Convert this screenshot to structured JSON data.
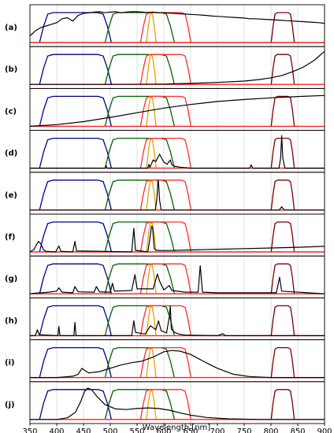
{
  "chart_data": {
    "type": "line",
    "xlabel": "Wavelength [nm]",
    "xlim": [
      350,
      900
    ],
    "xticks": [
      "350",
      "400",
      "450",
      "500",
      "550",
      "600",
      "650",
      "700",
      "750",
      "800",
      "850",
      "900"
    ],
    "grid": "vertical",
    "filters": [
      {
        "color": "#00008b",
        "band": [
          380,
          490
        ]
      },
      {
        "color": "#006400",
        "band": [
          502,
          608
        ]
      },
      {
        "color": "#e8a000",
        "band": [
          573,
          580
        ]
      },
      {
        "color": "#ff2a2a",
        "band": [
          565,
          642
        ]
      },
      {
        "color": "#7a0000",
        "band": [
          806,
          838
        ]
      }
    ],
    "panels": [
      {
        "label": "(a)",
        "spectrum_type": "solar_spectrum",
        "points": [
          [
            350,
            0.2
          ],
          [
            360,
            0.35
          ],
          [
            370,
            0.45
          ],
          [
            380,
            0.5
          ],
          [
            390,
            0.55
          ],
          [
            400,
            0.6
          ],
          [
            410,
            0.72
          ],
          [
            420,
            0.75
          ],
          [
            430,
            0.65
          ],
          [
            440,
            0.82
          ],
          [
            450,
            0.88
          ],
          [
            460,
            0.9
          ],
          [
            470,
            0.92
          ],
          [
            480,
            0.93
          ],
          [
            490,
            0.9
          ],
          [
            500,
            0.92
          ],
          [
            510,
            0.93
          ],
          [
            520,
            0.9
          ],
          [
            530,
            0.92
          ],
          [
            540,
            0.93
          ],
          [
            550,
            0.93
          ],
          [
            560,
            0.92
          ],
          [
            570,
            0.91
          ],
          [
            580,
            0.92
          ],
          [
            590,
            0.9
          ],
          [
            600,
            0.9
          ],
          [
            610,
            0.89
          ],
          [
            620,
            0.88
          ],
          [
            630,
            0.87
          ],
          [
            640,
            0.86
          ],
          [
            650,
            0.85
          ],
          [
            660,
            0.84
          ],
          [
            670,
            0.83
          ],
          [
            680,
            0.82
          ],
          [
            690,
            0.8
          ],
          [
            700,
            0.79
          ],
          [
            710,
            0.78
          ],
          [
            720,
            0.77
          ],
          [
            730,
            0.76
          ],
          [
            740,
            0.75
          ],
          [
            750,
            0.74
          ],
          [
            760,
            0.72
          ],
          [
            770,
            0.72
          ],
          [
            780,
            0.71
          ],
          [
            790,
            0.7
          ],
          [
            800,
            0.69
          ],
          [
            810,
            0.68
          ],
          [
            820,
            0.67
          ],
          [
            830,
            0.66
          ],
          [
            840,
            0.65
          ],
          [
            850,
            0.64
          ],
          [
            860,
            0.63
          ],
          [
            870,
            0.62
          ],
          [
            880,
            0.61
          ],
          [
            890,
            0.6
          ],
          [
            900,
            0.58
          ]
        ]
      },
      {
        "label": "(b)",
        "spectrum_type": "rising_curve",
        "points": [
          [
            350,
            0
          ],
          [
            500,
            0
          ],
          [
            600,
            0.01
          ],
          [
            650,
            0.03
          ],
          [
            700,
            0.06
          ],
          [
            750,
            0.1
          ],
          [
            780,
            0.15
          ],
          [
            800,
            0.2
          ],
          [
            820,
            0.27
          ],
          [
            840,
            0.38
          ],
          [
            860,
            0.52
          ],
          [
            880,
            0.72
          ],
          [
            900,
            1.0
          ]
        ]
      },
      {
        "label": "(c)",
        "spectrum_type": "broad_curve",
        "points": [
          [
            350,
            0
          ],
          [
            400,
            0.05
          ],
          [
            450,
            0.14
          ],
          [
            500,
            0.27
          ],
          [
            550,
            0.41
          ],
          [
            600,
            0.55
          ],
          [
            650,
            0.66
          ],
          [
            700,
            0.75
          ],
          [
            750,
            0.81
          ],
          [
            800,
            0.86
          ],
          [
            850,
            0.9
          ],
          [
            900,
            0.93
          ]
        ]
      },
      {
        "label": "(d)",
        "spectrum_type": "emission_lines",
        "points": [
          [
            350,
            0
          ],
          [
            490,
            0
          ],
          [
            492,
            0.08
          ],
          [
            494,
            0
          ],
          [
            570,
            0
          ],
          [
            572,
            0.12
          ],
          [
            574,
            0.02
          ],
          [
            580,
            0.25
          ],
          [
            585,
            0.2
          ],
          [
            588,
            0.3
          ],
          [
            592,
            0.42
          ],
          [
            596,
            0.3
          ],
          [
            600,
            0.18
          ],
          [
            606,
            0.12
          ],
          [
            612,
            0.25
          ],
          [
            615,
            0.1
          ],
          [
            620,
            0.06
          ],
          [
            630,
            0.03
          ],
          [
            650,
            0
          ],
          [
            760,
            0
          ],
          [
            763,
            0.1
          ],
          [
            766,
            0
          ],
          [
            815,
            0
          ],
          [
            818,
            0.3
          ],
          [
            820,
            0.98
          ],
          [
            822,
            0.3
          ],
          [
            826,
            0
          ],
          [
            900,
            0
          ]
        ]
      },
      {
        "label": "(e)",
        "spectrum_type": "emission_lines",
        "points": [
          [
            350,
            0
          ],
          [
            584,
            0
          ],
          [
            587,
            0.35
          ],
          [
            589,
            0.9
          ],
          [
            590,
            0.85
          ],
          [
            592,
            0.3
          ],
          [
            595,
            0
          ],
          [
            815,
            0
          ],
          [
            818,
            0.05
          ],
          [
            820,
            0.1
          ],
          [
            822,
            0.05
          ],
          [
            826,
            0
          ],
          [
            900,
            0
          ]
        ]
      },
      {
        "label": "(f)",
        "spectrum_type": "emission_lines",
        "points": [
          [
            350,
            0
          ],
          [
            358,
            0.08
          ],
          [
            362,
            0.22
          ],
          [
            366,
            0.32
          ],
          [
            370,
            0.25
          ],
          [
            376,
            0.05
          ],
          [
            380,
            0.02
          ],
          [
            398,
            0
          ],
          [
            404,
            0.18
          ],
          [
            408,
            0.02
          ],
          [
            430,
            0
          ],
          [
            434,
            0.32
          ],
          [
            437,
            0.03
          ],
          [
            540,
            0
          ],
          [
            544,
            0.72
          ],
          [
            547,
            0.05
          ],
          [
            570,
            0
          ],
          [
            573,
            0.3
          ],
          [
            577,
            0.78
          ],
          [
            579,
            0.75
          ],
          [
            582,
            0.1
          ],
          [
            586,
            0.05
          ],
          [
            600,
            0.04
          ],
          [
            650,
            0.06
          ],
          [
            700,
            0.08
          ],
          [
            750,
            0.1
          ],
          [
            800,
            0.12
          ],
          [
            850,
            0.14
          ],
          [
            900,
            0.17
          ]
        ]
      },
      {
        "label": "(g)",
        "spectrum_type": "emission_lines",
        "points": [
          [
            350,
            0
          ],
          [
            360,
            0.02
          ],
          [
            380,
            0.04
          ],
          [
            400,
            0.08
          ],
          [
            404,
            0.18
          ],
          [
            410,
            0.05
          ],
          [
            430,
            0.03
          ],
          [
            434,
            0.22
          ],
          [
            440,
            0.06
          ],
          [
            470,
            0.05
          ],
          [
            474,
            0.22
          ],
          [
            480,
            0.06
          ],
          [
            500,
            0.05
          ],
          [
            504,
            0.32
          ],
          [
            508,
            0.08
          ],
          [
            540,
            0.1
          ],
          [
            546,
            0.58
          ],
          [
            550,
            0.15
          ],
          [
            580,
            0.15
          ],
          [
            588,
            0.6
          ],
          [
            592,
            0.38
          ],
          [
            600,
            0.12
          ],
          [
            610,
            0.25
          ],
          [
            615,
            0.1
          ],
          [
            640,
            0.05
          ],
          [
            664,
            0.05
          ],
          [
            668,
            0.85
          ],
          [
            672,
            0.05
          ],
          [
            700,
            0.03
          ],
          [
            810,
            0.03
          ],
          [
            816,
            0.5
          ],
          [
            820,
            0.08
          ],
          [
            900,
            0
          ]
        ]
      },
      {
        "label": "(h)",
        "spectrum_type": "emission_lines",
        "points": [
          [
            350,
            0
          ],
          [
            360,
            0
          ],
          [
            364,
            0.18
          ],
          [
            367,
            0.03
          ],
          [
            380,
            0.02
          ],
          [
            402,
            0
          ],
          [
            404,
            0.28
          ],
          [
            406,
            0
          ],
          [
            432,
            0
          ],
          [
            434,
            0.4
          ],
          [
            436,
            0
          ],
          [
            540,
            0
          ],
          [
            544,
            0.45
          ],
          [
            547,
            0.1
          ],
          [
            565,
            0.05
          ],
          [
            575,
            0.3
          ],
          [
            585,
            0.18
          ],
          [
            590,
            0.45
          ],
          [
            595,
            0.15
          ],
          [
            600,
            0.12
          ],
          [
            605,
            0.08
          ],
          [
            610,
            0.55
          ],
          [
            612,
            0.9
          ],
          [
            614,
            0.2
          ],
          [
            620,
            0.1
          ],
          [
            628,
            0.05
          ],
          [
            640,
            0.02
          ],
          [
            700,
            0
          ],
          [
            710,
            0.06
          ],
          [
            715,
            0
          ],
          [
            900,
            0
          ]
        ]
      },
      {
        "label": "(i)",
        "spectrum_type": "broad_peak",
        "points": [
          [
            350,
            0
          ],
          [
            400,
            0
          ],
          [
            430,
            0.04
          ],
          [
            440,
            0.1
          ],
          [
            447,
            0.28
          ],
          [
            452,
            0.22
          ],
          [
            460,
            0.14
          ],
          [
            480,
            0.18
          ],
          [
            500,
            0.28
          ],
          [
            520,
            0.38
          ],
          [
            540,
            0.45
          ],
          [
            560,
            0.5
          ],
          [
            580,
            0.62
          ],
          [
            600,
            0.78
          ],
          [
            615,
            0.82
          ],
          [
            630,
            0.8
          ],
          [
            650,
            0.7
          ],
          [
            680,
            0.44
          ],
          [
            700,
            0.28
          ],
          [
            730,
            0.1
          ],
          [
            760,
            0.03
          ],
          [
            800,
            0
          ],
          [
            900,
            0
          ]
        ]
      },
      {
        "label": "(j)",
        "spectrum_type": "broad_peak",
        "points": [
          [
            350,
            0
          ],
          [
            400,
            0
          ],
          [
            420,
            0.05
          ],
          [
            435,
            0.22
          ],
          [
            445,
            0.55
          ],
          [
            452,
            0.85
          ],
          [
            458,
            0.95
          ],
          [
            465,
            0.9
          ],
          [
            475,
            0.7
          ],
          [
            490,
            0.45
          ],
          [
            510,
            0.32
          ],
          [
            530,
            0.3
          ],
          [
            550,
            0.33
          ],
          [
            570,
            0.35
          ],
          [
            590,
            0.33
          ],
          [
            610,
            0.28
          ],
          [
            630,
            0.2
          ],
          [
            650,
            0.13
          ],
          [
            680,
            0.06
          ],
          [
            720,
            0.02
          ],
          [
            780,
            0
          ],
          [
            900,
            0
          ]
        ]
      }
    ]
  }
}
